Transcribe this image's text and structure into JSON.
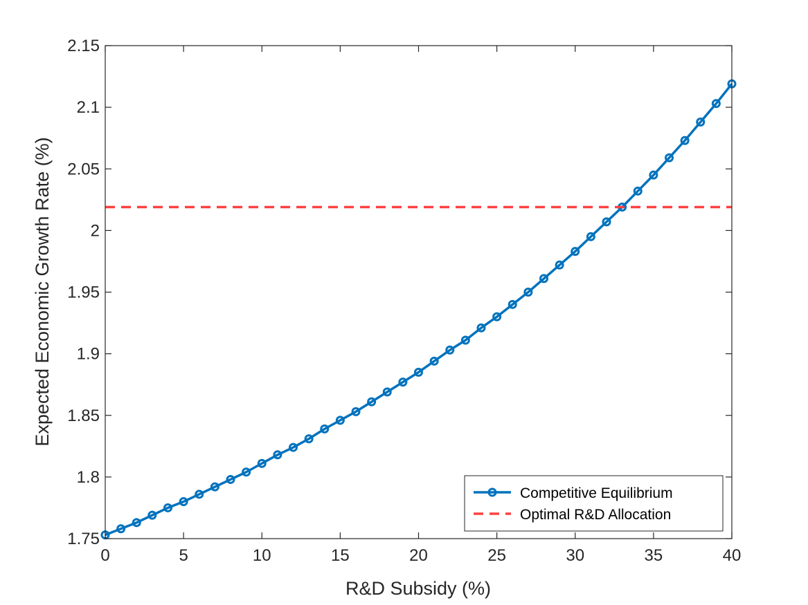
{
  "chart_data": {
    "type": "line",
    "title": "",
    "xlabel": "R&D Subsidy (%)",
    "ylabel": "Expected Economic Growth Rate (%)",
    "xlim": [
      0,
      40
    ],
    "ylim": [
      1.75,
      2.15
    ],
    "xticks": [
      0,
      5,
      10,
      15,
      20,
      25,
      30,
      35,
      40
    ],
    "yticks": [
      1.75,
      1.8,
      1.85,
      1.9,
      1.95,
      2,
      2.05,
      2.1,
      2.15
    ],
    "xtick_labels": [
      "0",
      "5",
      "10",
      "15",
      "20",
      "25",
      "30",
      "35",
      "40"
    ],
    "ytick_labels": [
      "1.75",
      "1.8",
      "1.85",
      "1.9",
      "1.95",
      "2",
      "2.05",
      "2.1",
      "2.15"
    ],
    "grid": false,
    "legend_position": "bottom-right",
    "series": [
      {
        "name": "Competitive Equilibrium",
        "style": "solid",
        "marker": "circle",
        "color": "#0072BD",
        "x": [
          0,
          1,
          2,
          3,
          4,
          5,
          6,
          7,
          8,
          9,
          10,
          11,
          12,
          13,
          14,
          15,
          16,
          17,
          18,
          19,
          20,
          21,
          22,
          23,
          24,
          25,
          26,
          27,
          28,
          29,
          30,
          31,
          32,
          33,
          34,
          35,
          36,
          37,
          38,
          39,
          40
        ],
        "y": [
          1.753,
          1.758,
          1.763,
          1.769,
          1.775,
          1.78,
          1.786,
          1.792,
          1.798,
          1.804,
          1.811,
          1.818,
          1.824,
          1.831,
          1.839,
          1.846,
          1.853,
          1.861,
          1.869,
          1.877,
          1.885,
          1.894,
          1.903,
          1.911,
          1.921,
          1.93,
          1.94,
          1.95,
          1.961,
          1.972,
          1.983,
          1.995,
          2.007,
          2.019,
          2.032,
          2.045,
          2.059,
          2.073,
          2.088,
          2.103,
          2.119
        ]
      },
      {
        "name": "Optimal R&D Allocation",
        "style": "dashed",
        "marker": "none",
        "color": "#FF4040",
        "x": [
          0,
          40
        ],
        "y": [
          2.019,
          2.019
        ]
      }
    ]
  }
}
